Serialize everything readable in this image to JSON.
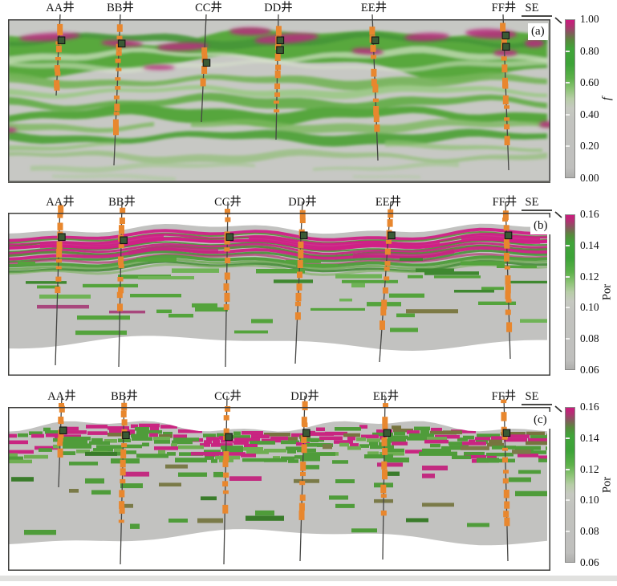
{
  "figure": {
    "direction_label": "SE",
    "panels": [
      {
        "tag": "(a)",
        "wells": [
          "AA井",
          "BB井",
          "CC井",
          "DD井",
          "EE井",
          "FF井"
        ],
        "colorbar": {
          "title": "f",
          "ticks": [
            "1.00",
            "0.80",
            "0.60",
            "0.40",
            "0.20",
            "0.00"
          ]
        }
      },
      {
        "tag": "(b)",
        "wells": [
          "AA井",
          "BB井",
          "CC井",
          "DD井",
          "EE井",
          "FF井"
        ],
        "colorbar": {
          "title": "Por",
          "ticks": [
            "0.16",
            "0.14",
            "0.12",
            "0.10",
            "0.08",
            "0.06"
          ]
        }
      },
      {
        "tag": "(c)",
        "wells": [
          "AA井",
          "BB井",
          "CC井",
          "DD井",
          "EE井",
          "FF井"
        ],
        "colorbar": {
          "title": "Por",
          "ticks": [
            "0.16",
            "0.14",
            "0.12",
            "0.10",
            "0.08",
            "0.06"
          ]
        }
      }
    ],
    "colors": {
      "high": "#cb1a7e",
      "mid": "#45a23b",
      "low": "#c3c3c0",
      "well_marker": "#e8872e",
      "well_square": "#3a5a35",
      "frame": "#3d3d3b"
    }
  },
  "chart_data": [
    {
      "type": "heatmap",
      "panel": "(a)",
      "title": "Cross-section of attribute f along SE direction with six wells",
      "section_orientation": "SE",
      "wells": [
        "AA井",
        "BB井",
        "CC井",
        "DD井",
        "EE井",
        "FF井"
      ],
      "colorbar": {
        "label": "f",
        "min": 0.0,
        "max": 1.0,
        "ticks": [
          0.0,
          0.2,
          0.4,
          0.6,
          0.8,
          1.0
        ],
        "position": "right"
      },
      "palette": [
        {
          "value": 0.0,
          "color": "#bfbfbd"
        },
        {
          "value": 0.5,
          "color": "#b7cda7"
        },
        {
          "value": 0.7,
          "color": "#3da338"
        },
        {
          "value": 1.0,
          "color": "#cb1a7e"
        }
      ],
      "pattern": "smooth wavy sub-horizontal green bands (f≈0.6-0.8) on gray low-value background; magenta high-value (f≈1.0) lenses concentrated in the upper band; orange perforation blocks along near-vertical well tracks",
      "grid": false,
      "legend": "colorbar"
    },
    {
      "type": "heatmap",
      "panel": "(b)",
      "title": "Porosity (Por) cross-section along SE direction with six wells",
      "section_orientation": "SE",
      "wells": [
        "AA井",
        "BB井",
        "CC井",
        "DD井",
        "EE井",
        "FF井"
      ],
      "colorbar": {
        "label": "Por",
        "min": 0.06,
        "max": 0.16,
        "ticks": [
          0.06,
          0.08,
          0.1,
          0.12,
          0.14,
          0.16
        ],
        "position": "right"
      },
      "palette": [
        {
          "value": 0.06,
          "color": "#bfbfbd"
        },
        {
          "value": 0.1,
          "color": "#b7cda7"
        },
        {
          "value": 0.13,
          "color": "#3da338"
        },
        {
          "value": 0.16,
          "color": "#cb1a7e"
        }
      ],
      "pattern": "irregular gray body with wavy top/bottom; continuous magenta high-porosity (≈0.15-0.16) striped band at the top followed by green (≈0.12-0.13) layers; scattered discontinuous green streaks below; white outside body",
      "grid": false,
      "legend": "colorbar"
    },
    {
      "type": "heatmap",
      "panel": "(c)",
      "title": "Porosity (Por) cross-section (blocky model) along SE direction with six wells",
      "section_orientation": "SE",
      "wells": [
        "AA井",
        "BB井",
        "CC井",
        "DD井",
        "EE井",
        "FF井"
      ],
      "colorbar": {
        "label": "Por",
        "min": 0.06,
        "max": 0.16,
        "ticks": [
          0.06,
          0.08,
          0.1,
          0.12,
          0.14,
          0.16
        ],
        "position": "right"
      },
      "palette": [
        {
          "value": 0.06,
          "color": "#bfbfbd"
        },
        {
          "value": 0.1,
          "color": "#b7cda7"
        },
        {
          "value": 0.13,
          "color": "#3da338"
        },
        {
          "value": 0.16,
          "color": "#cb1a7e"
        }
      ],
      "pattern": "pixelated/blocky version: mixed magenta-green cellular band at top, blocky green streaks with sparse magenta cells in gray body, wavy lower boundary, white outside body",
      "grid": false,
      "legend": "colorbar"
    }
  ]
}
